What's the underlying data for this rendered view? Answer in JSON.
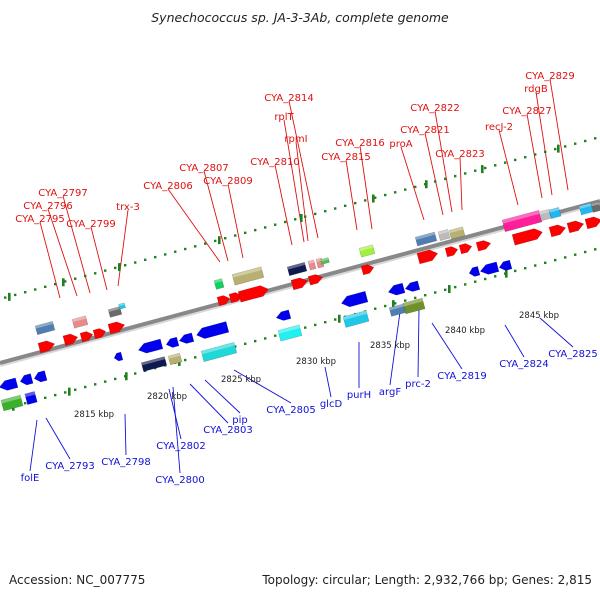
{
  "title": "Synechococcus sp. JA-3-3Ab, complete genome",
  "accession_text": "Accession: NC_007775",
  "topology_text": "Topology: circular; Length: 2,932,766 bp; Genes: 2,815",
  "scale_labels": [
    "2815 kbp",
    "2820 kbp",
    "2825 kbp",
    "2830 kbp",
    "2835 kbp",
    "2840 kbp",
    "2845 kbp"
  ],
  "forward_gene_labels": [
    "CYA_2795",
    "CYA_2796",
    "CYA_2797",
    "CYA_2799",
    "trx-3",
    "CYA_2806",
    "CYA_2807",
    "CYA_2809",
    "CYA_2810",
    "rplT",
    "CYA_2814",
    "rpmI",
    "CYA_2815",
    "CYA_2816",
    "proA",
    "CYA_2821",
    "CYA_2822",
    "CYA_2823",
    "recJ-2",
    "CYA_2827",
    "rdgB",
    "CYA_2829"
  ],
  "reverse_gene_labels": [
    "folE",
    "CYA_2793",
    "CYA_2798",
    "CYA_2800",
    "CYA_2802",
    "CYA_2803",
    "pip",
    "CYA_2805",
    "glcD",
    "purH",
    "argF",
    "prc-2",
    "CYA_2819",
    "CYA_2824",
    "CYA_2825"
  ],
  "colors": {
    "forward_label": "#e01010",
    "reverse_label": "#1010d8",
    "forward_gene": "#ff0000",
    "reverse_gene": "#0000ee",
    "backbone": "#888888",
    "tick": "#208020"
  }
}
